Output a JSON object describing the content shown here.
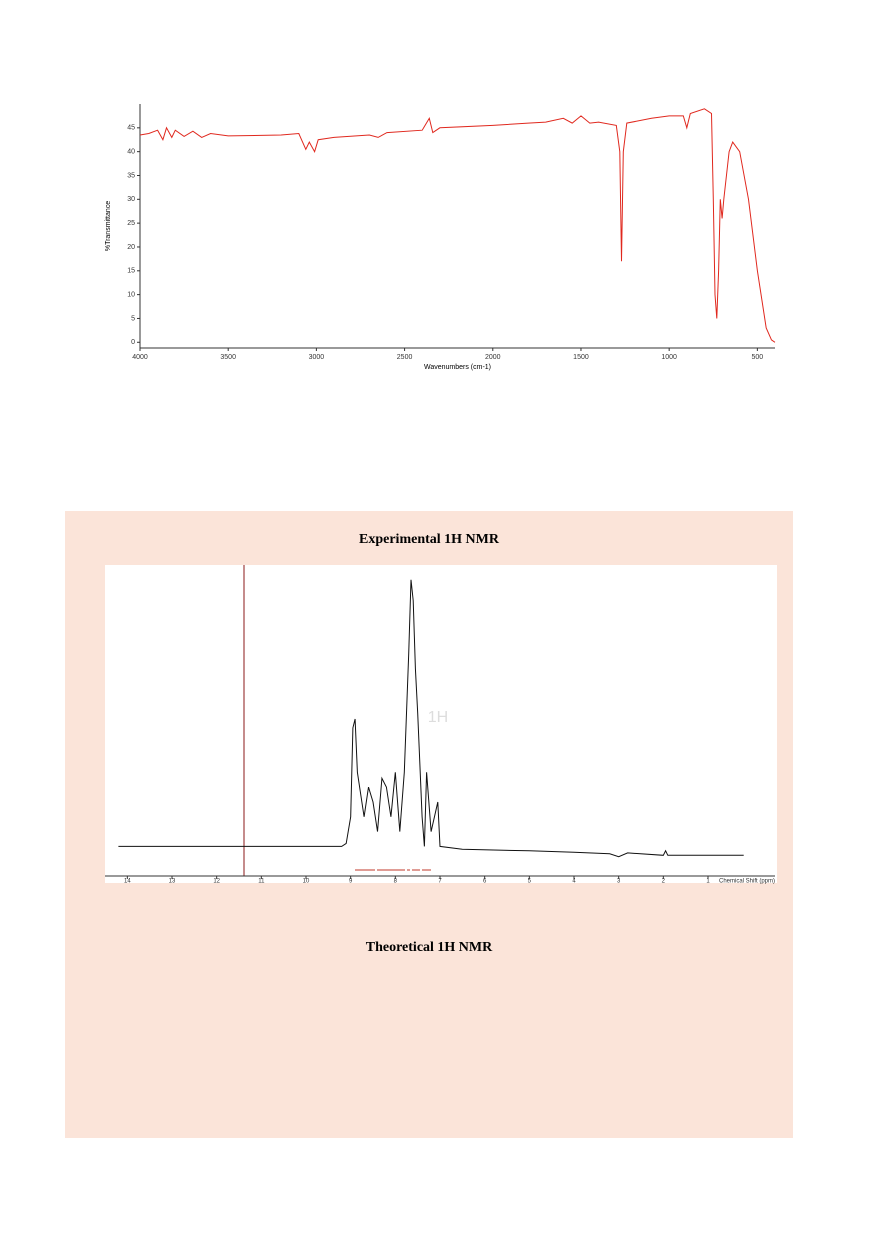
{
  "sections": [
    {
      "heading": "Experimental 1H NMR"
    },
    {
      "heading": "Theoretical 1H NMR"
    }
  ],
  "chart_data": [
    {
      "type": "line",
      "ylabel": "%Transmittance",
      "xlabel": "Wavenumbers (cm-1)",
      "color": "#e0281e",
      "xlim": [
        4000,
        400
      ],
      "ylim": [
        -1.2,
        50
      ],
      "xticks": [
        4000,
        3500,
        3000,
        2500,
        2000,
        1500,
        1000,
        500
      ],
      "yticks": [
        0,
        5,
        10,
        15,
        20,
        25,
        30,
        35,
        40,
        45
      ],
      "series": [
        {
          "x": [
            4000,
            3950,
            3900,
            3870,
            3850,
            3820,
            3800,
            3750,
            3700,
            3650,
            3600,
            3500,
            3200,
            3100,
            3060,
            3040,
            3010,
            2990,
            2900,
            2700,
            2650,
            2600,
            2400,
            2360,
            2340,
            2300,
            2000,
            1800,
            1700,
            1600,
            1550,
            1500,
            1450,
            1400,
            1300,
            1280,
            1270,
            1260,
            1240,
            1100,
            1000,
            920,
            900,
            880,
            800,
            760,
            750,
            740,
            730,
            720,
            710,
            700,
            690,
            660,
            640,
            600,
            550,
            500,
            450,
            420,
            400
          ],
          "values": [
            43.5,
            43.8,
            44.5,
            42.5,
            45,
            43,
            44.5,
            43.2,
            44.3,
            43,
            43.8,
            43.3,
            43.5,
            43.8,
            40.5,
            42,
            40,
            42.5,
            43,
            43.5,
            43,
            44,
            44.5,
            47,
            44,
            45,
            45.5,
            46,
            46.2,
            47,
            46,
            47.5,
            46,
            46.2,
            45.5,
            40,
            17,
            40,
            46,
            47,
            47.5,
            47.5,
            45,
            48,
            49,
            48,
            30,
            10,
            5,
            15,
            30,
            26,
            30,
            40,
            42,
            40,
            30,
            15,
            3,
            0.5,
            0
          ]
        }
      ]
    },
    {
      "type": "line",
      "xlabel": "Chemical Shift (ppm)",
      "annotation": "1H",
      "color": "#111111",
      "xlim": [
        14.5,
        -0.5
      ],
      "ylim": [
        -5,
        100
      ],
      "xticks": [
        14,
        13,
        12,
        11,
        10,
        9,
        8,
        7,
        6,
        5,
        4,
        3,
        2,
        1
      ],
      "series": [
        {
          "x": [
            14.2,
            12,
            10,
            9.2,
            9.1,
            9.0,
            8.95,
            8.9,
            8.85,
            8.7,
            8.6,
            8.5,
            8.4,
            8.3,
            8.2,
            8.1,
            8.0,
            7.9,
            7.8,
            7.7,
            7.65,
            7.6,
            7.55,
            7.5,
            7.4,
            7.35,
            7.3,
            7.2,
            7.05,
            7.0,
            6.5,
            5,
            4,
            3.2,
            3,
            2.8,
            2,
            1.95,
            1.9,
            1.7,
            0.2
          ],
          "values": [
            5,
            5,
            5,
            5,
            6,
            15,
            45,
            48,
            30,
            15,
            25,
            20,
            10,
            28,
            25,
            15,
            30,
            10,
            30,
            70,
            95,
            88,
            65,
            50,
            15,
            5,
            30,
            10,
            20,
            5,
            4,
            3.5,
            3,
            2.5,
            1.5,
            2.8,
            2,
            3.5,
            2,
            2,
            2
          ]
        }
      ]
    }
  ]
}
